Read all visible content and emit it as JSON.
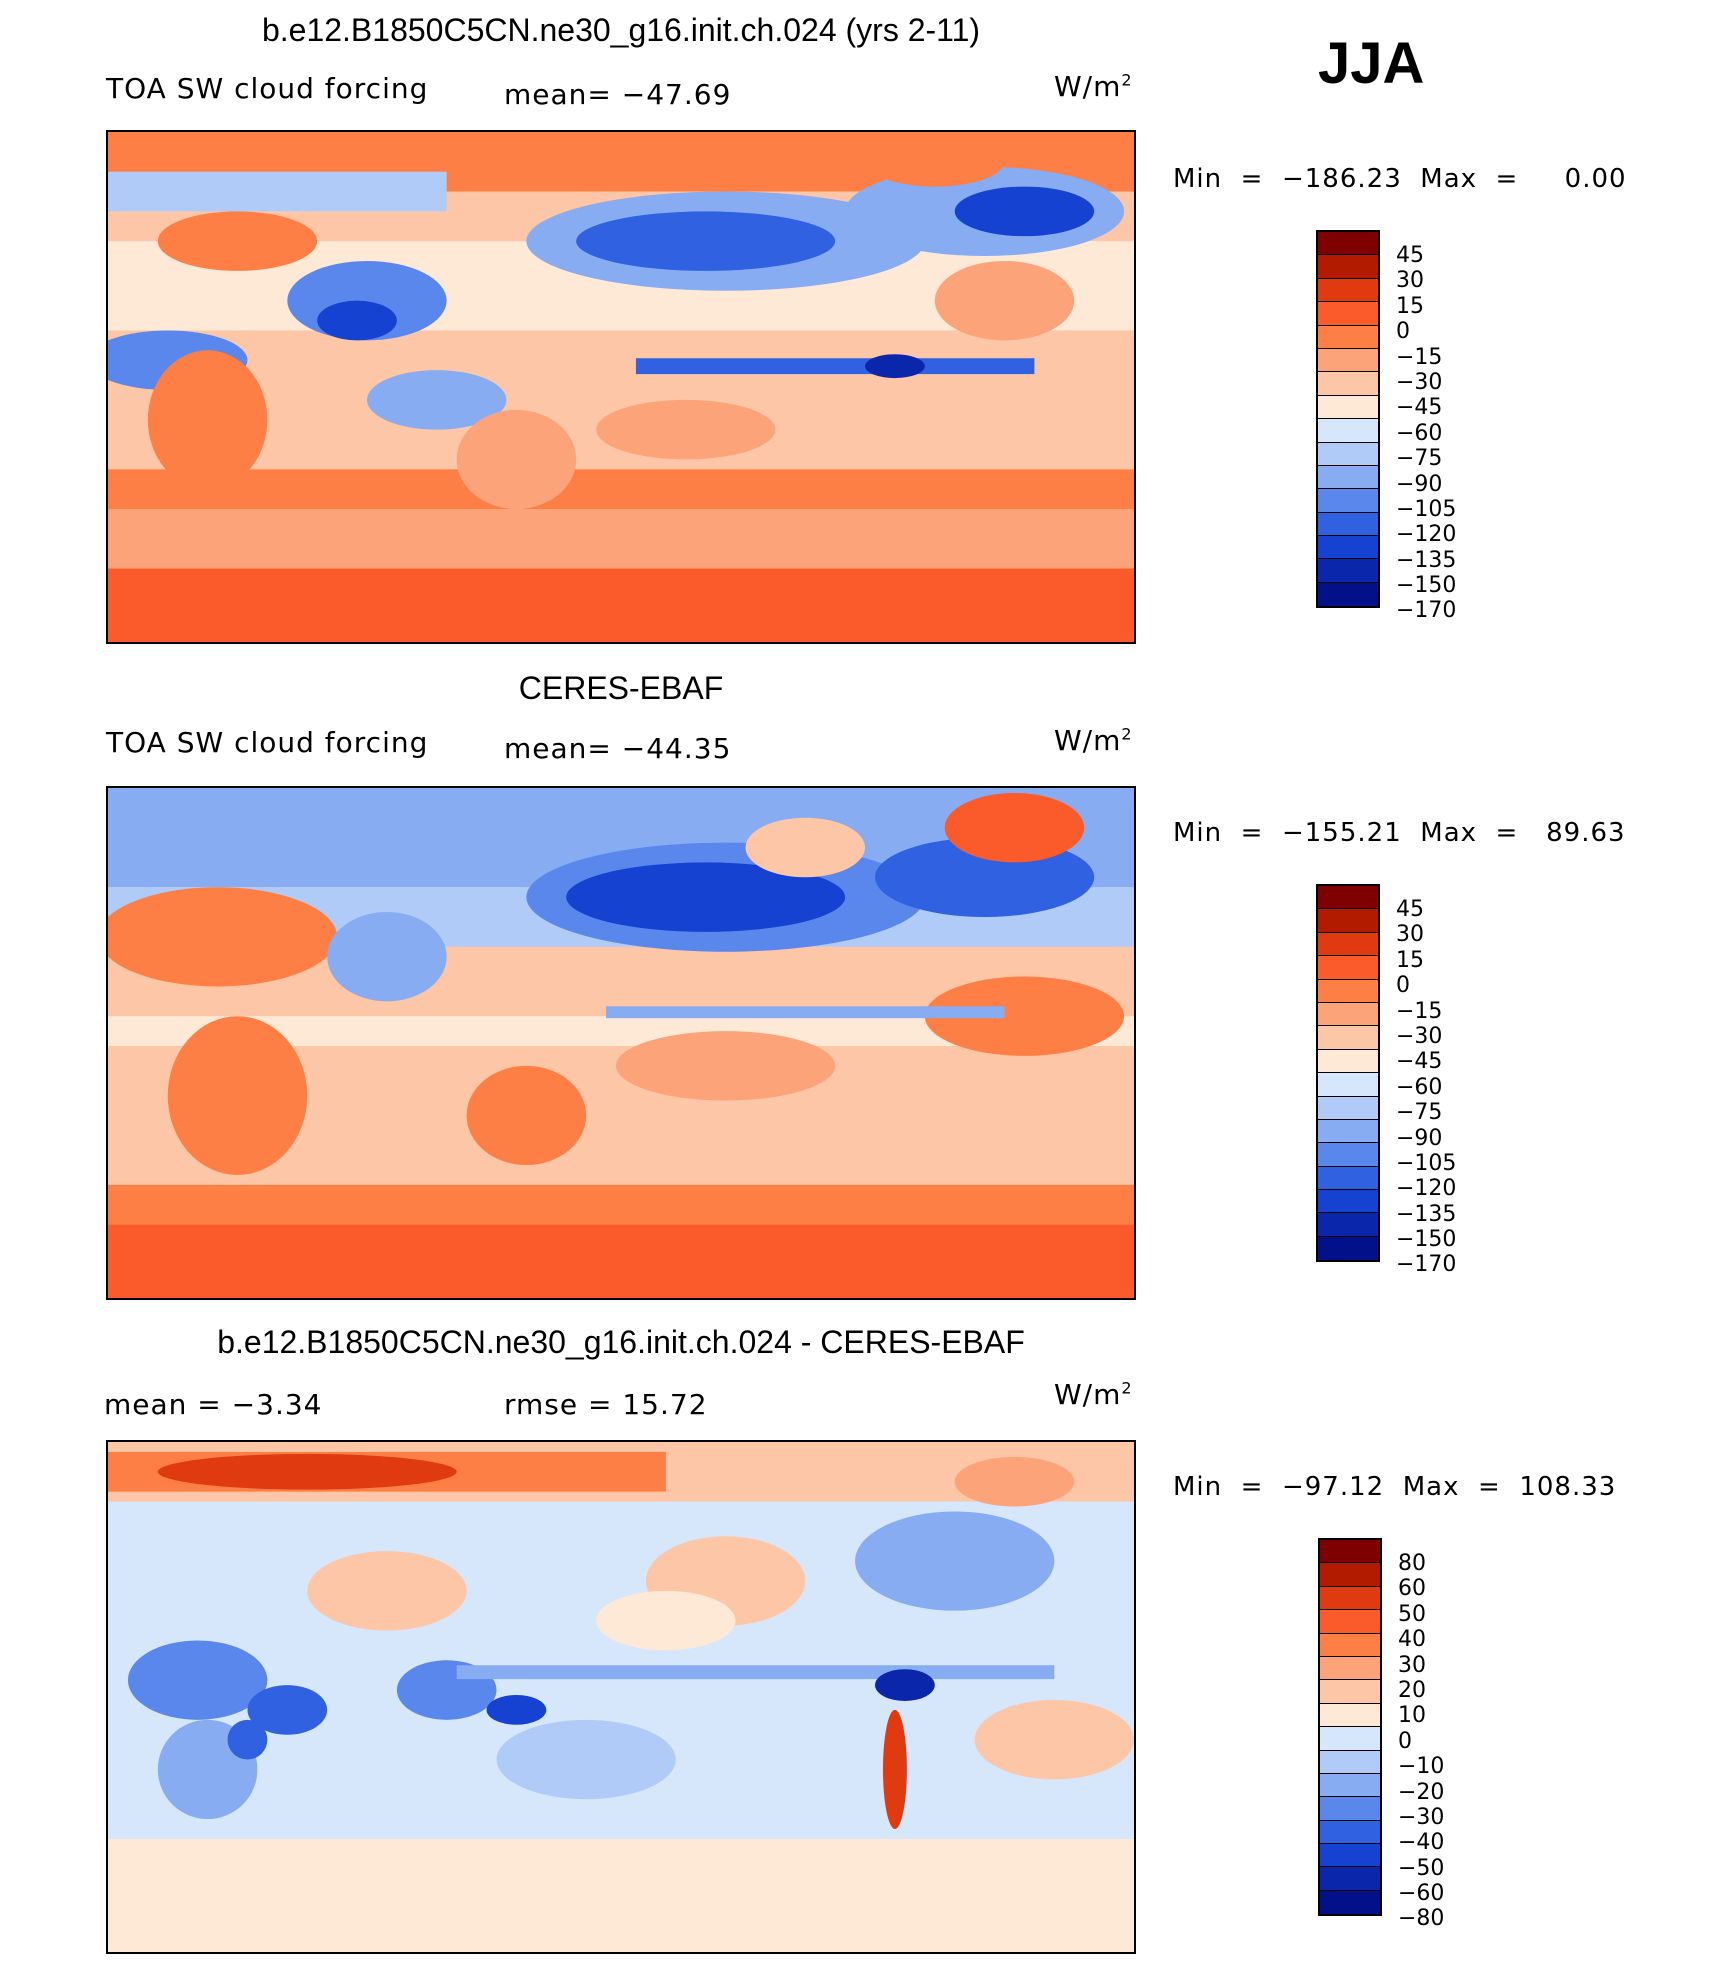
{
  "season": "JJA",
  "units_base": "W/m",
  "units_exp": "2",
  "panels": [
    {
      "title": "b.e12.B1850C5CN.ne30_g16.init.ch.024 (yrs 2-11)",
      "left_label": "TOA SW cloud forcing",
      "center_label": "mean=  −47.69",
      "minmax": "Min  =  −186.23  Max  =     0.00",
      "colorbar_labels": [
        "45",
        "30",
        "15",
        "0",
        "−15",
        "−30",
        "−45",
        "−60",
        "−75",
        "−90",
        "−105",
        "−120",
        "−135",
        "−150",
        "−170"
      ]
    },
    {
      "title": "CERES-EBAF",
      "left_label": "TOA SW cloud forcing",
      "center_label": "mean=  −44.35",
      "minmax": "Min  =  −155.21  Max  =   89.63",
      "colorbar_labels": [
        "45",
        "30",
        "15",
        "0",
        "−15",
        "−30",
        "−45",
        "−60",
        "−75",
        "−90",
        "−105",
        "−120",
        "−135",
        "−150",
        "−170"
      ]
    },
    {
      "title": "b.e12.B1850C5CN.ne30_g16.init.ch.024 - CERES-EBAF",
      "left_label": "mean  =    −3.34",
      "center_label": "rmse  =    15.72",
      "minmax": "Min  =  −97.12  Max  =  108.33",
      "colorbar_labels": [
        "80",
        "60",
        "50",
        "40",
        "30",
        "20",
        "10",
        "0",
        "−10",
        "−20",
        "−30",
        "−40",
        "−50",
        "−60",
        "−80"
      ]
    }
  ],
  "colors": {
    "scale": [
      "#7f0000",
      "#b31b00",
      "#e03a10",
      "#fb5a2a",
      "#fd7f45",
      "#fda37a",
      "#fdc6a6",
      "#fde9d6",
      "#d6e6fb",
      "#b0cbf7",
      "#87acf2",
      "#5a87ec",
      "#3061e0",
      "#1542d0",
      "#0a27ac",
      "#02108a"
    ]
  }
}
